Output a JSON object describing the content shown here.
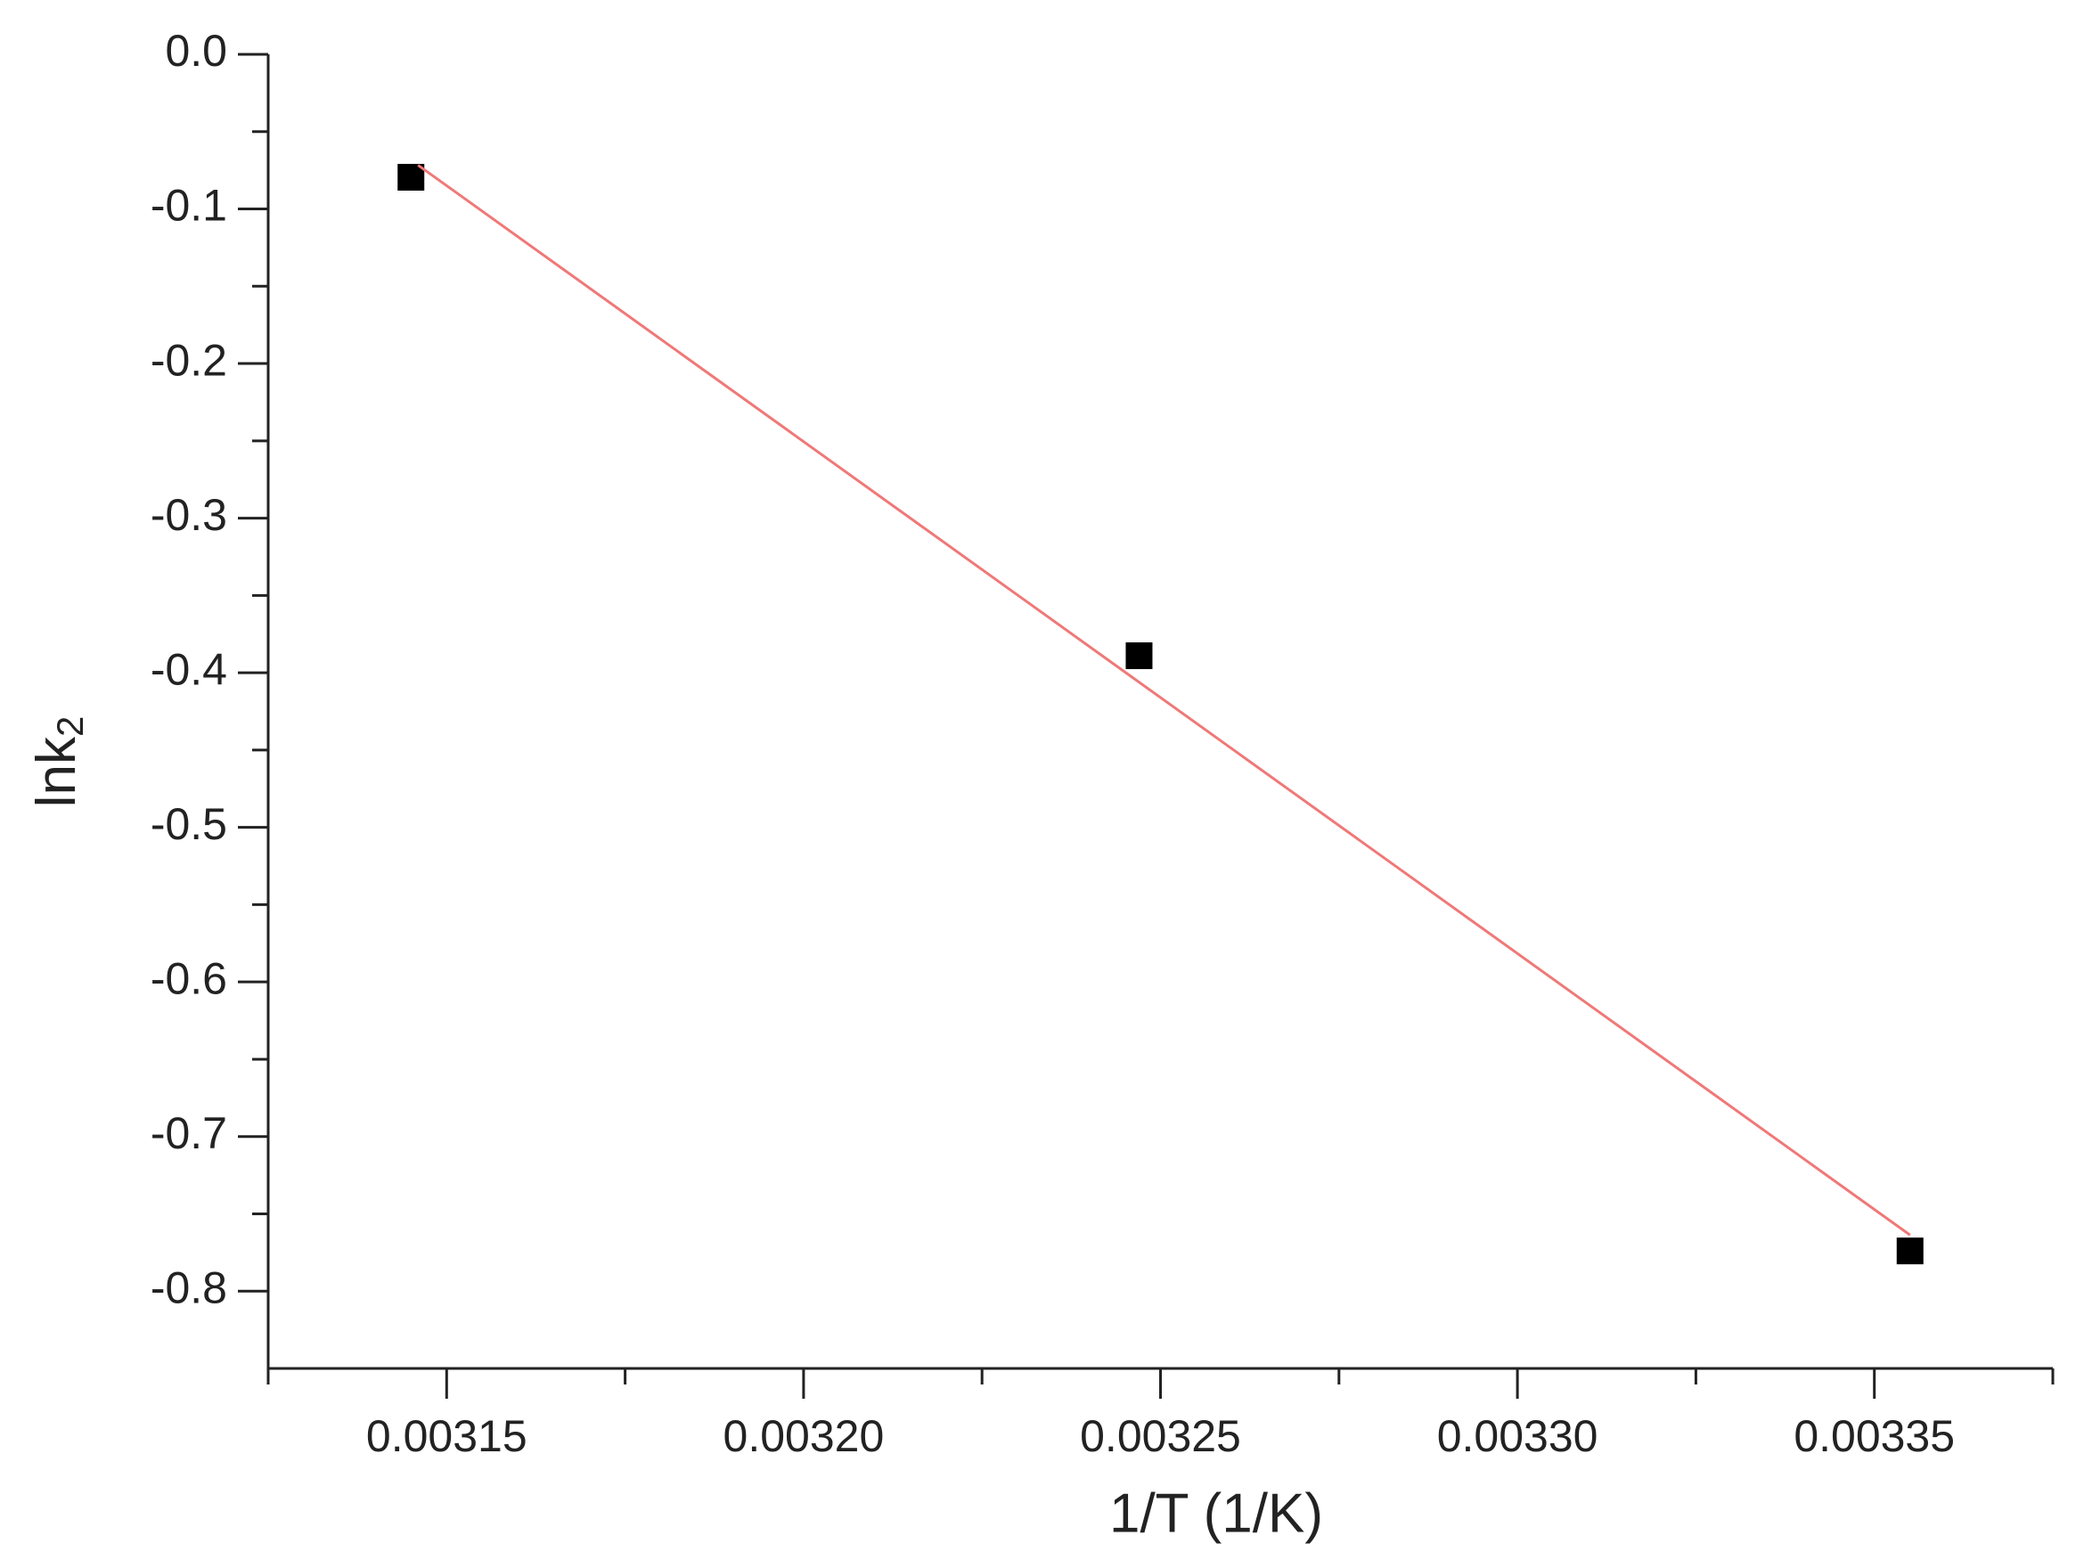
{
  "chart_data": {
    "type": "scatter",
    "xlabel": "1/T (1/K)",
    "ylabel": "lnk",
    "ylabel_subscript": "2",
    "xlim": [
      0.003125,
      0.003375
    ],
    "xticks": [
      {
        "value": 0.00315,
        "label": "0.00315"
      },
      {
        "value": 0.0032,
        "label": "0.00320"
      },
      {
        "value": 0.00325,
        "label": "0.00325"
      },
      {
        "value": 0.0033,
        "label": "0.00330"
      },
      {
        "value": 0.00335,
        "label": "0.00335"
      }
    ],
    "ylim": [
      -0.85,
      0
    ],
    "yticks": [
      {
        "value": 0,
        "label": "0.0"
      },
      -0.1,
      -0.2,
      -0.3,
      -0.4,
      -0.5,
      -0.6,
      -0.7,
      -0.8
    ],
    "grid": false,
    "series": [
      {
        "type": "scatter",
        "marker": "square",
        "color": "#000000",
        "x": [
          0.003145,
          0.003247,
          0.003355
        ],
        "values": [
          -0.0795,
          -0.389,
          -0.774
        ]
      },
      {
        "type": "line",
        "color": "#f07878",
        "x": [
          0.003146,
          0.003355
        ],
        "values": [
          -0.0717,
          -0.7637
        ]
      }
    ]
  }
}
